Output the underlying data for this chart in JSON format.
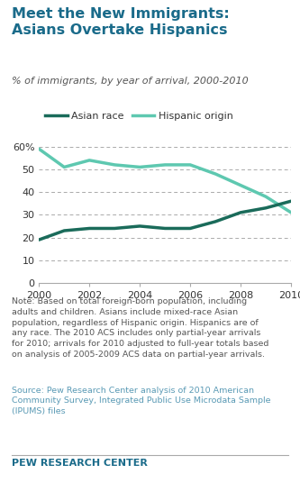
{
  "title": "Meet the New Immigrants:\nAsians Overtake Hispanics",
  "subtitle": "% of immigrants, by year of arrival, 2000-2010",
  "title_color": "#1a6b8a",
  "subtitle_color": "#555555",
  "years": [
    2000,
    2001,
    2002,
    2003,
    2004,
    2005,
    2006,
    2007,
    2008,
    2009,
    2010
  ],
  "asian": [
    19,
    23,
    24,
    24,
    25,
    24,
    24,
    27,
    31,
    33,
    36
  ],
  "hispanic": [
    59,
    51,
    54,
    52,
    51,
    52,
    52,
    48,
    43,
    38,
    31
  ],
  "asian_color": "#1a6b5a",
  "hispanic_color": "#5ec8b0",
  "asian_label": "Asian race",
  "hispanic_label": "Hispanic origin",
  "ylim": [
    0,
    65
  ],
  "yticks": [
    0,
    10,
    20,
    30,
    40,
    50,
    60
  ],
  "ytick_labels": [
    "0",
    "10",
    "20",
    "30",
    "40",
    "50",
    "60%"
  ],
  "note": "Note: Based on total foreign-born population, including\nadults and children. Asians include mixed-race Asian\npopulation, regardless of Hispanic origin. Hispanics are of\nany race. The 2010 ACS includes only partial-year arrivals\nfor 2010; arrivals for 2010 adjusted to full-year totals based\non analysis of 2005-2009 ACS data on partial-year arrivals.",
  "source": "Source: Pew Research Center analysis of 2010 American\nCommunity Survey, Integrated Public Use Microdata Sample\n(IPUMS) files",
  "footer": "PEW RESEARCH CENTER",
  "note_color": "#555555",
  "source_color": "#5a9ab5",
  "footer_color": "#1a6b8a",
  "line_width": 2.5,
  "background_color": "#ffffff"
}
